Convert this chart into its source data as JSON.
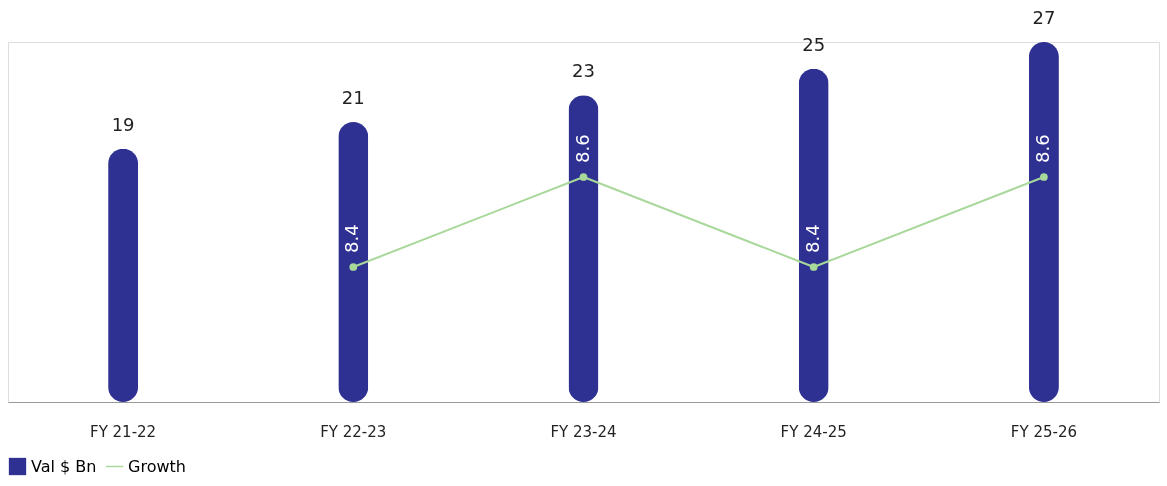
{
  "chart_data": {
    "type": "bar",
    "categories": [
      "FY 21-22",
      "FY 22-23",
      "FY 23-24",
      "FY 24-25",
      "FY 25-26"
    ],
    "series": [
      {
        "name": "Val $ Bn",
        "color": "#2e3192",
        "values": [
          19,
          21,
          23,
          25,
          27
        ]
      },
      {
        "name": "Growth",
        "type": "line",
        "axis": "y2",
        "color": "#a8d89a",
        "values": [
          null,
          8.4,
          8.6,
          8.4,
          8.6
        ]
      }
    ],
    "data_labels": true,
    "grid": false,
    "legend": "bottom",
    "tick_labels": "x",
    "marker": "circle",
    "line_style": "solid"
  }
}
